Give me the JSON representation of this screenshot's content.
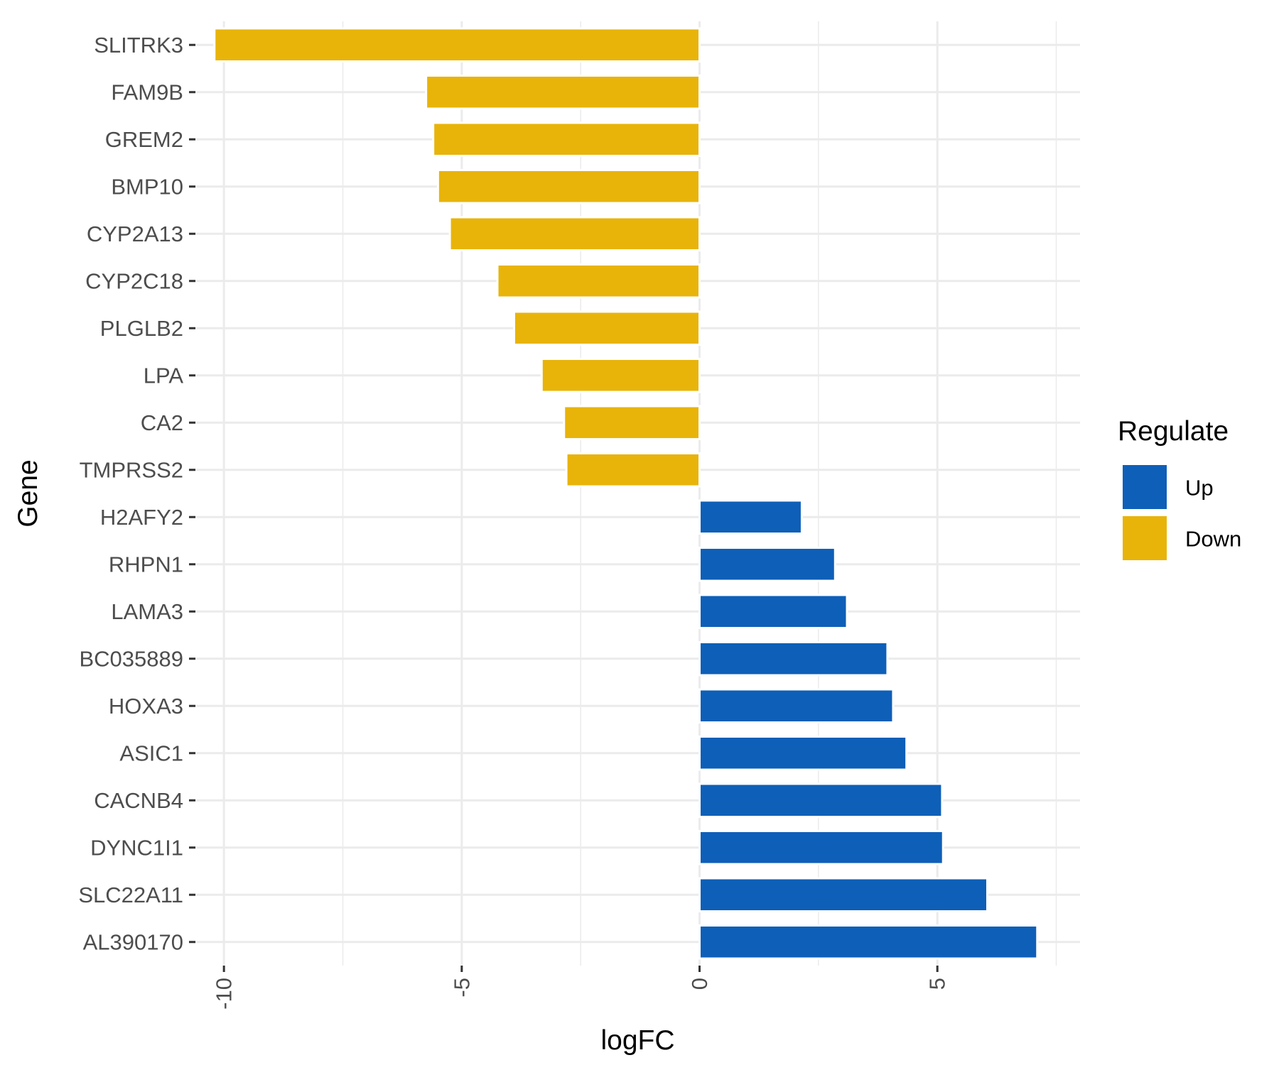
{
  "chart_data": {
    "type": "bar",
    "orientation": "horizontal",
    "xlabel": "logFC",
    "ylabel": "Gene",
    "xlim": [
      -10.6,
      8.0
    ],
    "x_ticks": [
      -10,
      -5,
      0,
      5
    ],
    "x_tick_labels": [
      "-10",
      "-5",
      "0",
      "5"
    ],
    "grid": true,
    "legend_position": "right",
    "legend": {
      "title": "Regulate",
      "items": [
        {
          "label": "Up",
          "color": "#0e5fb8"
        },
        {
          "label": "Down",
          "color": "#e8b40a"
        }
      ]
    },
    "categories": [
      "SLITRK3",
      "FAM9B",
      "GREM2",
      "BMP10",
      "CYP2A13",
      "CYP2C18",
      "PLGLB2",
      "LPA",
      "CA2",
      "TMPRSS2",
      "H2AFY2",
      "RHPN1",
      "LAMA3",
      "BC035889",
      "HOXA3",
      "ASIC1",
      "CACNB4",
      "DYNC1I1",
      "SLC22A11",
      "AL390170"
    ],
    "values": [
      -10.2,
      -5.75,
      -5.6,
      -5.5,
      -5.25,
      -4.25,
      -3.9,
      -3.32,
      -2.85,
      -2.8,
      2.15,
      2.85,
      3.1,
      3.95,
      4.07,
      4.35,
      5.1,
      5.12,
      6.05,
      7.1
    ],
    "regulate": [
      "Down",
      "Down",
      "Down",
      "Down",
      "Down",
      "Down",
      "Down",
      "Down",
      "Down",
      "Down",
      "Up",
      "Up",
      "Up",
      "Up",
      "Up",
      "Up",
      "Up",
      "Up",
      "Up",
      "Up"
    ]
  }
}
